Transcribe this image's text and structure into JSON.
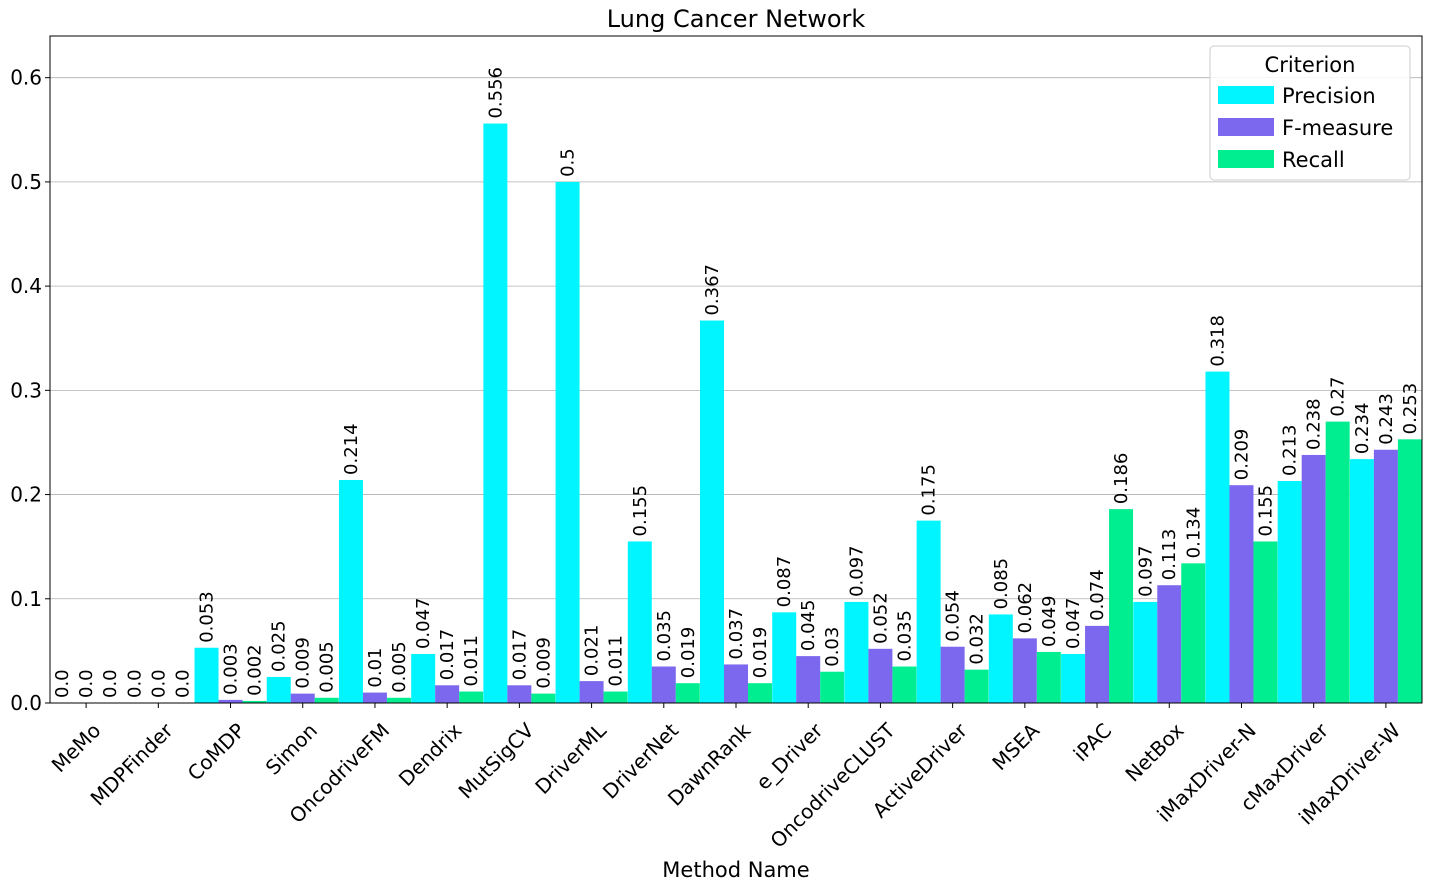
{
  "chart_data": {
    "type": "bar",
    "title": "Lung Cancer Network",
    "xlabel": "Method Name",
    "ylabel": "",
    "ylim": [
      0,
      0.64
    ],
    "yticks": [
      "0.0",
      "0.1",
      "0.2",
      "0.3",
      "0.4",
      "0.5",
      "0.6"
    ],
    "ytick_values": [
      0,
      0.1,
      0.2,
      0.3,
      0.4,
      0.5,
      0.6
    ],
    "grid": "horizontal",
    "legend": {
      "title": "Criterion",
      "placement": "top-right"
    },
    "categories": [
      "MeMo",
      "MDPFinder",
      "CoMDP",
      "Simon",
      "OncodriveFM",
      "Dendrix",
      "MutSigCV",
      "DriverML",
      "DriverNet",
      "DawnRank",
      "e_Driver",
      "OncodriveCLUST",
      "ActiveDriver",
      "MSEA",
      "iPAC",
      "NetBox",
      "iMaxDriver-N",
      "cMaxDriver",
      "iMaxDriver-W"
    ],
    "series": [
      {
        "name": "Precision",
        "color": "#00F5FF",
        "values": [
          0.0,
          0.0,
          0.053,
          0.025,
          0.214,
          0.047,
          0.556,
          0.5,
          0.155,
          0.367,
          0.087,
          0.097,
          0.175,
          0.085,
          0.047,
          0.097,
          0.318,
          0.213,
          0.234
        ],
        "labels": [
          "0.0",
          "0.0",
          "0.053",
          "0.025",
          "0.214",
          "0.047",
          "0.556",
          "0.5",
          "0.155",
          "0.367",
          "0.087",
          "0.097",
          "0.175",
          "0.085",
          "0.047",
          "0.097",
          "0.318",
          "0.213",
          "0.234"
        ]
      },
      {
        "name": "F-measure",
        "color": "#7B68EE",
        "values": [
          0.0,
          0.0,
          0.003,
          0.009,
          0.01,
          0.017,
          0.017,
          0.021,
          0.035,
          0.037,
          0.045,
          0.052,
          0.054,
          0.062,
          0.074,
          0.113,
          0.209,
          0.238,
          0.243
        ],
        "labels": [
          "0.0",
          "0.0",
          "0.003",
          "0.009",
          "0.01",
          "0.017",
          "0.017",
          "0.021",
          "0.035",
          "0.037",
          "0.045",
          "0.052",
          "0.054",
          "0.062",
          "0.074",
          "0.113",
          "0.209",
          "0.238",
          "0.243"
        ]
      },
      {
        "name": "Recall",
        "color": "#00EE90",
        "values": [
          0.0,
          0.0,
          0.002,
          0.005,
          0.005,
          0.011,
          0.009,
          0.011,
          0.019,
          0.019,
          0.03,
          0.035,
          0.032,
          0.049,
          0.186,
          0.134,
          0.155,
          0.27,
          0.253
        ],
        "labels": [
          "0.0",
          "0.0",
          "0.002",
          "0.005",
          "0.005",
          "0.011",
          "0.009",
          "0.011",
          "0.019",
          "0.019",
          "0.03",
          "0.035",
          "0.032",
          "0.049",
          "0.186",
          "0.134",
          "0.155",
          "0.27",
          "0.253"
        ]
      }
    ]
  }
}
